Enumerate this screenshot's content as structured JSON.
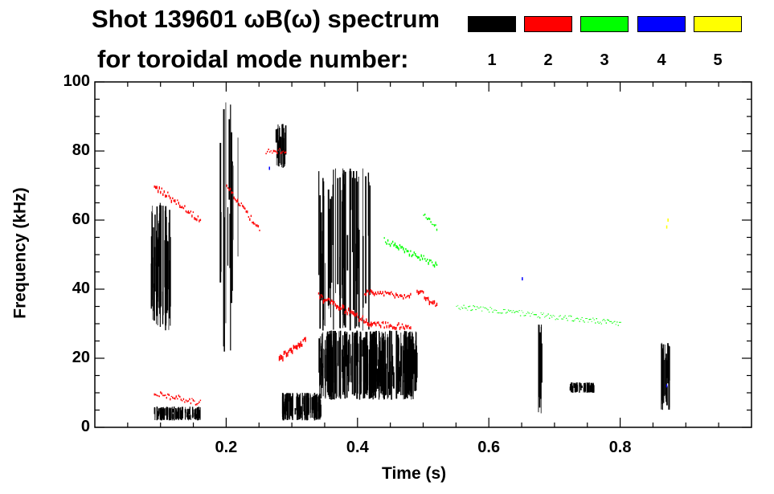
{
  "title_line1": "Shot 139601 ωB(ω) spectrum",
  "title_line2": "for toroidal mode number:",
  "legend": [
    {
      "label": "1",
      "color": "#000000"
    },
    {
      "label": "2",
      "color": "#ff0000"
    },
    {
      "label": "3",
      "color": "#00ff00"
    },
    {
      "label": "4",
      "color": "#0000ff"
    },
    {
      "label": "5",
      "color": "#ffff00"
    }
  ],
  "chart_data": {
    "type": "scatter",
    "xlabel": "Time (s)",
    "ylabel": "Frequency (kHz)",
    "xlim": [
      0.0,
      1.0
    ],
    "ylim": [
      0,
      100
    ],
    "xticks": [
      "0.2",
      "0.4",
      "0.6",
      "0.8"
    ],
    "xtick_values": [
      0.2,
      0.4,
      0.6,
      0.8
    ],
    "yticks": [
      "0",
      "20",
      "40",
      "60",
      "80",
      "100"
    ],
    "ytick_values": [
      0,
      20,
      40,
      60,
      80,
      100
    ],
    "series": [
      {
        "name": "1",
        "color": "#000000",
        "clusters": [
          {
            "t": [
              0.085,
              0.115
            ],
            "f": [
              28,
              65
            ],
            "density": 1.0
          },
          {
            "t": [
              0.09,
              0.16
            ],
            "f": [
              2,
              6
            ],
            "density": 0.8
          },
          {
            "t": [
              0.275,
              0.29
            ],
            "f": [
              75,
              88
            ],
            "density": 0.9
          },
          {
            "t": [
              0.285,
              0.345
            ],
            "f": [
              2,
              10
            ],
            "density": 0.9
          },
          {
            "t": [
              0.34,
              0.49
            ],
            "f": [
              8,
              28
            ],
            "density": 1.0
          },
          {
            "t": [
              0.34,
              0.42
            ],
            "f": [
              28,
              75
            ],
            "density": 0.35
          },
          {
            "t": [
              0.19,
              0.22
            ],
            "f": [
              20,
              95
            ],
            "density": 0.25
          },
          {
            "t": [
              0.675,
              0.68
            ],
            "f": [
              3,
              30
            ],
            "density": 0.9
          },
          {
            "t": [
              0.72,
              0.76
            ],
            "f": [
              10,
              13
            ],
            "density": 0.7
          },
          {
            "t": [
              0.86,
              0.875
            ],
            "f": [
              5,
              25
            ],
            "density": 0.9
          }
        ]
      },
      {
        "name": "2",
        "color": "#ff0000",
        "tracks": [
          {
            "t": [
              0.09,
              0.16
            ],
            "f": [
              70,
              60
            ],
            "width": 3
          },
          {
            "t": [
              0.2,
              0.25
            ],
            "f": [
              70,
              57
            ],
            "width": 3
          },
          {
            "t": [
              0.34,
              0.42
            ],
            "f": [
              38,
              30
            ],
            "width": 4
          },
          {
            "t": [
              0.42,
              0.48
            ],
            "f": [
              30,
              29
            ],
            "width": 3
          },
          {
            "t": [
              0.41,
              0.48
            ],
            "f": [
              39,
              38
            ],
            "width": 3
          },
          {
            "t": [
              0.49,
              0.52
            ],
            "f": [
              40,
              35
            ],
            "width": 4
          },
          {
            "t": [
              0.28,
              0.32
            ],
            "f": [
              20,
              25
            ],
            "width": 5
          },
          {
            "t": [
              0.09,
              0.16
            ],
            "f": [
              10,
              7
            ],
            "width": 2
          },
          {
            "t": [
              0.26,
              0.29
            ],
            "f": [
              80,
              80
            ],
            "width": 2
          }
        ]
      },
      {
        "name": "3",
        "color": "#00ff00",
        "tracks": [
          {
            "t": [
              0.44,
              0.52
            ],
            "f": [
              54,
              47
            ],
            "width": 3
          },
          {
            "t": [
              0.5,
              0.52
            ],
            "f": [
              62,
              58
            ],
            "width": 2
          },
          {
            "t": [
              0.55,
              0.8
            ],
            "f": [
              35,
              30
            ],
            "width": 1
          }
        ]
      },
      {
        "name": "4",
        "color": "#0000ff",
        "points": [
          [
            0.265,
            75
          ],
          [
            0.87,
            12
          ],
          [
            0.65,
            43
          ]
        ]
      },
      {
        "name": "5",
        "color": "#ffff00",
        "points": [
          [
            0.87,
            58
          ],
          [
            0.872,
            60
          ]
        ]
      }
    ]
  }
}
